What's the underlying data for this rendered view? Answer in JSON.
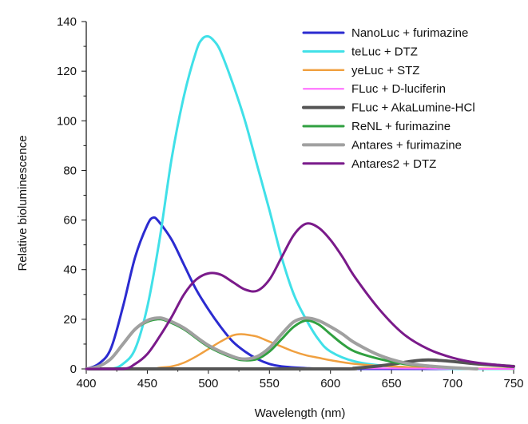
{
  "chart_data": {
    "type": "line",
    "title": "",
    "xlabel": "Wavelength (nm)",
    "ylabel": "Relative bioluminescence",
    "xlim": [
      400,
      750
    ],
    "ylim": [
      0,
      140
    ],
    "xticks": [
      400,
      450,
      500,
      550,
      600,
      650,
      700,
      750
    ],
    "yticks": [
      0,
      20,
      40,
      60,
      80,
      100,
      120,
      140
    ],
    "grid": false,
    "legend_position": "top-right",
    "series": [
      {
        "name": "NanoLuc + furimazine",
        "color": "#2b2bd0",
        "x": [
          400,
          410,
          420,
          430,
          440,
          450,
          455,
          460,
          470,
          480,
          490,
          500,
          510,
          520,
          530,
          540,
          550,
          560,
          580,
          600,
          650,
          700,
          750
        ],
        "y": [
          0,
          2,
          8,
          25,
          45,
          58,
          61,
          59,
          52,
          42,
          32,
          24,
          17,
          11,
          7,
          4,
          2,
          1,
          0.3,
          0,
          0,
          0,
          0
        ]
      },
      {
        "name": "teLuc + DTZ",
        "color": "#40e0e8",
        "x": [
          400,
          420,
          430,
          440,
          450,
          460,
          470,
          480,
          490,
          495,
          500,
          505,
          510,
          520,
          530,
          540,
          550,
          560,
          570,
          580,
          590,
          600,
          620,
          650,
          700,
          750
        ],
        "y": [
          0,
          0,
          2,
          8,
          25,
          52,
          85,
          110,
          128,
          133,
          134,
          132,
          128,
          115,
          100,
          82,
          64,
          45,
          30,
          20,
          12,
          7,
          3,
          1,
          0,
          0
        ]
      },
      {
        "name": "yeLuc + STZ",
        "color": "#f0a040",
        "x": [
          400,
          450,
          460,
          470,
          480,
          490,
          500,
          510,
          520,
          527,
          535,
          540,
          550,
          560,
          570,
          580,
          590,
          600,
          620,
          650,
          700,
          750
        ],
        "y": [
          0,
          0,
          0.5,
          1,
          2.5,
          5,
          8,
          11,
          13.5,
          14,
          13.5,
          13,
          11,
          9,
          7,
          5.5,
          4.5,
          3.5,
          2,
          1,
          0.3,
          0
        ]
      },
      {
        "name": "FLuc + D-luciferin",
        "color": "#ff66ff",
        "x": [
          400,
          500,
          550,
          600,
          650,
          700,
          750
        ],
        "y": [
          0,
          0,
          0.1,
          0.2,
          0.2,
          0.1,
          0
        ]
      },
      {
        "name": "FLuc + AkaLumine-HCl",
        "color": "#555555",
        "x": [
          400,
          600,
          620,
          640,
          660,
          670,
          680,
          690,
          700,
          720,
          750
        ],
        "y": [
          0,
          0,
          0.3,
          1.2,
          2.6,
          3.3,
          3.6,
          3.4,
          3,
          2,
          1
        ]
      },
      {
        "name": "ReNL + furimazine",
        "color": "#30a040",
        "x": [
          400,
          410,
          420,
          430,
          440,
          450,
          458,
          465,
          480,
          500,
          520,
          530,
          540,
          550,
          560,
          570,
          580,
          590,
          600,
          610,
          620,
          640,
          660,
          680,
          700,
          720
        ],
        "y": [
          0,
          1,
          4,
          10,
          16,
          19,
          20,
          19.5,
          16,
          9,
          4.5,
          3.5,
          4,
          7,
          12,
          17,
          19.5,
          18,
          14,
          10,
          7,
          4,
          2,
          1,
          0.5,
          0
        ]
      },
      {
        "name": "Antares + furimazine",
        "color": "#a0a0a0",
        "x": [
          400,
          410,
          420,
          430,
          440,
          450,
          458,
          465,
          480,
          500,
          520,
          530,
          540,
          550,
          560,
          570,
          580,
          590,
          600,
          610,
          620,
          640,
          660,
          680,
          700,
          720
        ],
        "y": [
          0,
          1,
          4,
          10,
          16,
          19.5,
          20.5,
          20,
          16.5,
          9.5,
          5,
          4,
          5,
          8.5,
          14,
          19,
          20.5,
          19.5,
          17,
          14,
          10.5,
          5.5,
          2.5,
          1.2,
          0.5,
          0
        ]
      },
      {
        "name": "Antares2 + DTZ",
        "color": "#7a1a8a",
        "x": [
          400,
          430,
          440,
          450,
          460,
          470,
          480,
          490,
          500,
          510,
          520,
          530,
          540,
          550,
          560,
          570,
          580,
          590,
          600,
          610,
          620,
          640,
          660,
          680,
          700,
          720,
          750
        ],
        "y": [
          0,
          0,
          2,
          6,
          13,
          21,
          30,
          36,
          38.5,
          38,
          35,
          32,
          31.5,
          36,
          45,
          54,
          58.5,
          57,
          52,
          45,
          37,
          24,
          14,
          8,
          4.5,
          2.5,
          1
        ]
      }
    ]
  }
}
